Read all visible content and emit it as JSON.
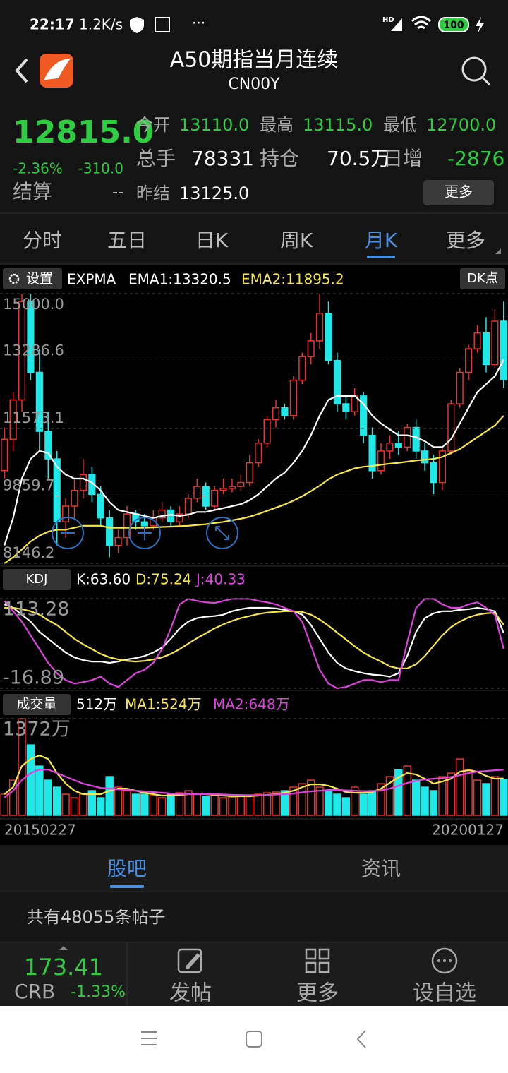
{
  "status_bar": {
    "time": "22:17",
    "speed": "1.2K/s",
    "network": "HD",
    "battery": "100"
  },
  "header": {
    "title": "A50期指当月连续",
    "code": "CN00Y"
  },
  "quote": {
    "price": "12815.0",
    "change_pct": "-2.36%",
    "change": "-310.0",
    "settle_label": "结算",
    "settle": "--",
    "stats": [
      {
        "label": "今开",
        "value": "13110.0",
        "color": "#2ecc40"
      },
      {
        "label": "最高",
        "value": "13115.0",
        "color": "#2ecc40"
      },
      {
        "label": "最低",
        "value": "12700.0",
        "color": "#2ecc40"
      },
      {
        "label": "总手",
        "value": "78331",
        "color": "#ffffff"
      },
      {
        "label": "持仓",
        "value": "70.5万",
        "color": "#ffffff"
      },
      {
        "label": "日增",
        "value": "-2876",
        "color": "#2ecc40"
      },
      {
        "label": "昨结",
        "value": "13125.0",
        "color": "#ffffff"
      }
    ],
    "more_button": "更多"
  },
  "tabs": {
    "items": [
      "分时",
      "五日",
      "日K",
      "周K",
      "月K",
      "更多"
    ],
    "active": 4
  },
  "kline_panel": {
    "settings": "设置",
    "dk_button": "DK点"
  },
  "chart_data": [
    {
      "type": "candlestick",
      "indicator": "EXPMA",
      "up_color": "#e8322e",
      "down_color": "#1ee8e8",
      "open": [
        10500,
        11300,
        12300,
        14800,
        13000,
        11500,
        10800,
        9200,
        9600,
        10000,
        10400,
        9900,
        9300,
        8600,
        8800,
        9400,
        9200,
        9100,
        9300,
        9500,
        9200,
        9400,
        9800,
        10100,
        9600,
        10000,
        10050,
        10100,
        10200,
        10700,
        11200,
        11800,
        12100,
        11900,
        12800,
        13400,
        13800,
        14500,
        13300,
        12200,
        12000,
        12400,
        11400,
        10500,
        11000,
        11200,
        11100,
        11600,
        11000,
        10700,
        10200,
        11000,
        12200,
        13000,
        13600,
        14000,
        13200,
        14300
      ],
      "high": [
        11600,
        12500,
        15000,
        15000,
        13600,
        12000,
        11000,
        9800,
        10300,
        10800,
        10600,
        10100,
        9500,
        9000,
        9600,
        9500,
        9400,
        9500,
        9700,
        9600,
        9600,
        9900,
        10300,
        10200,
        10100,
        10300,
        10300,
        10400,
        10900,
        11300,
        11900,
        12300,
        12200,
        12900,
        13500,
        14000,
        15000,
        14800,
        13500,
        12400,
        12600,
        12500,
        11600,
        11200,
        11400,
        11500,
        11700,
        11800,
        11200,
        10900,
        11100,
        12300,
        13100,
        13700,
        14200,
        14400,
        14600,
        14800
      ],
      "low": [
        10300,
        11000,
        12000,
        12800,
        11000,
        10300,
        8600,
        8800,
        9300,
        9800,
        9700,
        9100,
        8300,
        8400,
        8600,
        9000,
        8900,
        9000,
        9200,
        9100,
        9100,
        9300,
        9700,
        9500,
        9500,
        9900,
        9950,
        10000,
        10100,
        10600,
        11100,
        11600,
        11800,
        11800,
        12700,
        13200,
        13600,
        13200,
        12000,
        11800,
        11900,
        11200,
        10300,
        10400,
        10800,
        10900,
        11000,
        10800,
        10500,
        9900,
        10000,
        10900,
        12100,
        12800,
        13500,
        13000,
        13100,
        12600
      ],
      "close": [
        11300,
        12300,
        14800,
        13000,
        11500,
        10800,
        9200,
        9600,
        10000,
        10400,
        9900,
        9300,
        8600,
        8800,
        9400,
        9200,
        9100,
        9300,
        9500,
        9200,
        9400,
        9800,
        10100,
        9600,
        10000,
        10050,
        10100,
        10200,
        10700,
        11200,
        11800,
        12100,
        11900,
        12800,
        13400,
        13800,
        14500,
        13300,
        12200,
        12000,
        12400,
        11400,
        10500,
        11000,
        11200,
        11100,
        11600,
        11000,
        10700,
        10200,
        11000,
        12200,
        13000,
        13600,
        14000,
        13200,
        14300,
        12815
      ],
      "series": [
        {
          "label": "EMA1:13320.5",
          "color": "#ffffff",
          "values": [
            8600,
            9300,
            10300,
            10800,
            11000,
            10950,
            10600,
            10400,
            10300,
            10300,
            10200,
            10000,
            9700,
            9500,
            9450,
            9400,
            9350,
            9300,
            9350,
            9380,
            9350,
            9380,
            9450,
            9450,
            9500,
            9550,
            9600,
            9650,
            9750,
            9900,
            10100,
            10300,
            10450,
            10700,
            11000,
            11400,
            11900,
            12300,
            12400,
            12400,
            12400,
            12200,
            11900,
            11700,
            11550,
            11400,
            11400,
            11350,
            11250,
            11100,
            11100,
            11300,
            11700,
            12100,
            12500,
            12700,
            12900,
            13320.5
          ]
        },
        {
          "label": "EMA2:11895.2",
          "color": "#f5e642",
          "values": [
            8146,
            8300,
            8500,
            8700,
            8850,
            8950,
            9000,
            9000,
            9050,
            9100,
            9100,
            9100,
            9050,
            9050,
            9050,
            9050,
            9050,
            9060,
            9070,
            9080,
            9090,
            9100,
            9120,
            9140,
            9170,
            9200,
            9240,
            9280,
            9330,
            9400,
            9480,
            9560,
            9640,
            9740,
            9850,
            9980,
            10120,
            10280,
            10400,
            10480,
            10560,
            10600,
            10620,
            10650,
            10680,
            10700,
            10730,
            10760,
            10780,
            10800,
            10850,
            10950,
            11050,
            11200,
            11350,
            11500,
            11650,
            11895.2
          ]
        }
      ],
      "ylim": [
        8146.2,
        15000
      ],
      "yticks": [
        {
          "value": 15000,
          "label": "15000.0"
        },
        13286.6,
        11573.1,
        9859.7,
        8146.2
      ],
      "grid": true
    },
    {
      "type": "line",
      "title": "KDJ",
      "series": [
        {
          "label": "K:63.60",
          "color": "#ffffff",
          "values": [
            105,
            100,
            90,
            80,
            65,
            55,
            45,
            35,
            28,
            24,
            22,
            22,
            20,
            22,
            25,
            27,
            30,
            35,
            42,
            55,
            70,
            80,
            85,
            87,
            88,
            90,
            95,
            98,
            100,
            100,
            100,
            99,
            97,
            95,
            90,
            75,
            55,
            35,
            20,
            12,
            8,
            5,
            3,
            2,
            0,
            5,
            30,
            65,
            85,
            92,
            95,
            95,
            97,
            98,
            100,
            98,
            95,
            63.6
          ]
        },
        {
          "label": "D:75.24",
          "color": "#f5e642",
          "values": [
            100,
            100,
            98,
            95,
            90,
            82,
            75,
            65,
            55,
            47,
            40,
            33,
            28,
            25,
            23,
            22,
            23,
            25,
            28,
            33,
            40,
            48,
            56,
            63,
            70,
            76,
            81,
            85,
            88,
            91,
            93,
            94,
            95,
            95,
            94,
            90,
            83,
            74,
            64,
            54,
            44,
            35,
            28,
            22,
            15,
            12,
            12,
            18,
            30,
            45,
            60,
            72,
            80,
            86,
            90,
            92,
            93,
            75.24
          ]
        },
        {
          "label": "J:40.33",
          "color": "#e040e0",
          "values": [
            110,
            95,
            80,
            60,
            40,
            20,
            5,
            -5,
            -10,
            -8,
            -5,
            0,
            -10,
            -15,
            -5,
            5,
            10,
            20,
            40,
            70,
            105,
            113,
            110,
            108,
            107,
            110,
            113,
            113,
            113,
            110,
            108,
            105,
            100,
            95,
            80,
            45,
            10,
            -10,
            -17,
            -15,
            -10,
            -5,
            -5,
            -8,
            -5,
            -5,
            50,
            100,
            113,
            113,
            105,
            100,
            100,
            105,
            108,
            100,
            90,
            40.33
          ]
        }
      ],
      "ylim": [
        -16.89,
        113.28
      ],
      "yticks": [
        113.28,
        -16.89
      ]
    },
    {
      "type": "bar",
      "title": "成交量",
      "current_label": "512万",
      "values": [
        300,
        500,
        1372,
        1000,
        700,
        500,
        400,
        300,
        250,
        300,
        350,
        250,
        550,
        400,
        350,
        300,
        300,
        280,
        250,
        300,
        320,
        350,
        300,
        270,
        280,
        250,
        260,
        280,
        290,
        300,
        320,
        330,
        350,
        400,
        450,
        500,
        400,
        350,
        300,
        250,
        400,
        300,
        350,
        450,
        550,
        650,
        700,
        500,
        400,
        350,
        550,
        600,
        800,
        650,
        500,
        450,
        550,
        512
      ],
      "series": [
        {
          "label": "MA1:524万",
          "color": "#f5e642",
          "values": [
            300,
            400,
            700,
            800,
            850,
            800,
            600,
            450,
            350,
            300,
            300,
            300,
            350,
            380,
            380,
            350,
            320,
            300,
            280,
            280,
            290,
            300,
            310,
            300,
            290,
            280,
            270,
            270,
            270,
            280,
            290,
            300,
            320,
            350,
            400,
            440,
            440,
            420,
            380,
            330,
            320,
            320,
            330,
            380,
            460,
            540,
            600,
            580,
            520,
            450,
            480,
            520,
            620,
            640,
            620,
            560,
            520,
            524
          ]
        },
        {
          "label": "MA2:648万",
          "color": "#e040e0",
          "values": [
            250,
            350,
            500,
            600,
            650,
            650,
            600,
            550,
            500,
            450,
            420,
            390,
            380,
            370,
            360,
            350,
            340,
            330,
            320,
            310,
            305,
            300,
            300,
            300,
            300,
            295,
            290,
            288,
            285,
            285,
            290,
            295,
            300,
            310,
            325,
            340,
            350,
            360,
            360,
            355,
            350,
            345,
            345,
            355,
            380,
            420,
            460,
            490,
            510,
            520,
            530,
            545,
            570,
            600,
            620,
            630,
            640,
            648
          ]
        }
      ],
      "ylim": [
        0,
        1372
      ],
      "yticks": [
        {
          "value": 1372,
          "label": "1372万"
        }
      ],
      "x_start": "20150227",
      "x_end": "20200127"
    }
  ],
  "section_tabs": {
    "items": [
      "股吧",
      "资讯"
    ],
    "active": 0
  },
  "post_count": "共有48055条帖子",
  "footer": {
    "index_value": "173.41",
    "index_name": "CRB",
    "index_change": "-1.33%",
    "buttons": [
      "发帖",
      "更多",
      "设自选"
    ]
  }
}
